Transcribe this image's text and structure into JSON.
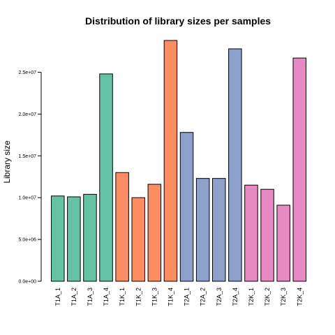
{
  "chart_data": {
    "type": "bar",
    "title": "Distribution of library sizes per samples",
    "ylabel": "Library size",
    "xlabel": "",
    "ylim": [
      0,
      29000000
    ],
    "yticks": [
      0,
      5000000,
      10000000,
      15000000,
      20000000,
      25000000
    ],
    "ytick_labels": [
      "0.0e+00",
      "5.0e+06",
      "1.0e+07",
      "1.5e+07",
      "2.0e+07",
      "2.5e+07"
    ],
    "grid": false,
    "legend": "none",
    "categories": [
      "T1A_1",
      "T1A_2",
      "T1A_3",
      "T1A_4",
      "T1K_1",
      "T1K_2",
      "T1K_3",
      "T1K_4",
      "T2A_1",
      "T2A_2",
      "T2A_3",
      "T2A_4",
      "T2K_1",
      "T2K_2",
      "T2K_3",
      "T2K_4"
    ],
    "values": [
      10200000,
      10100000,
      10400000,
      24800000,
      13000000,
      10000000,
      11600000,
      28800000,
      17800000,
      12300000,
      12300000,
      27800000,
      11500000,
      11000000,
      9100000,
      26700000
    ],
    "groups": [
      "T1A",
      "T1A",
      "T1A",
      "T1A",
      "T1K",
      "T1K",
      "T1K",
      "T1K",
      "T2A",
      "T2A",
      "T2A",
      "T2A",
      "T2K",
      "T2K",
      "T2K",
      "T2K"
    ],
    "group_colors": {
      "T1A": "#66c2a5",
      "T1K": "#fc8d62",
      "T2A": "#8da0cb",
      "T2K": "#e78ac3"
    }
  }
}
